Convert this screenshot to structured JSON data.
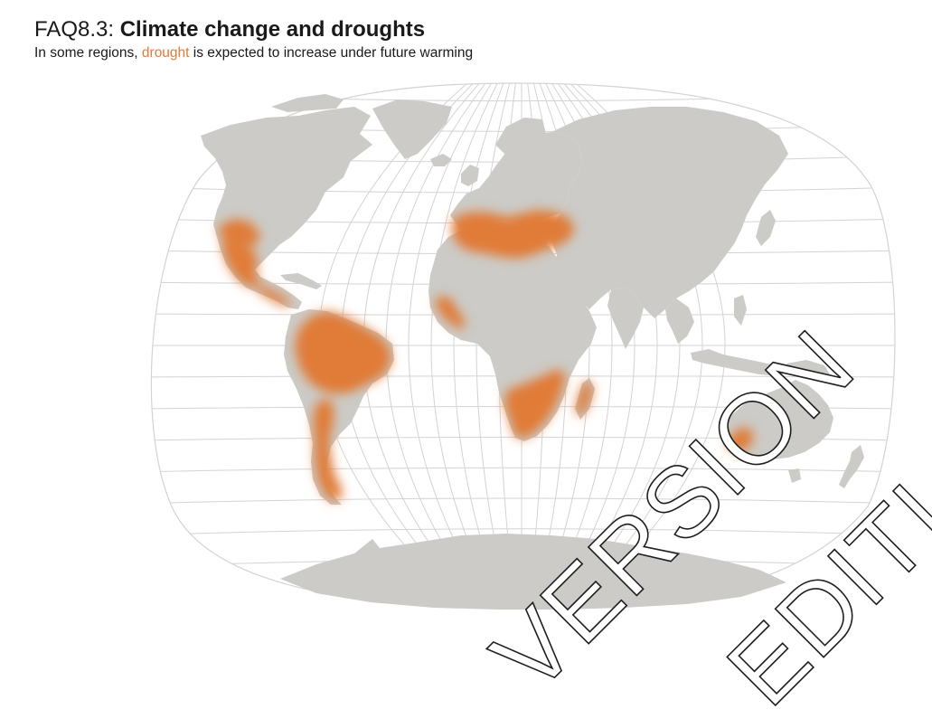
{
  "header": {
    "code": "FAQ8.3:",
    "title": "Climate change and droughts",
    "subtitle_before": "In some regions, ",
    "subtitle_highlight": "drought",
    "subtitle_after": " is expected to increase under future warming"
  },
  "map": {
    "projection": "winkel-tripel",
    "graticule": true,
    "land_color": "#cccbc7",
    "graticule_color": "#d3d3d3",
    "drought_color": "#e07b39",
    "drought_regions": [
      "Western North America",
      "Mexico",
      "Central America",
      "Amazon",
      "Southern South America",
      "Mediterranean",
      "West Africa",
      "Southern Africa",
      "Madagascar",
      "Southwestern Australia"
    ]
  },
  "watermark": {
    "line1": "VERSION",
    "line2": "EDITI"
  }
}
